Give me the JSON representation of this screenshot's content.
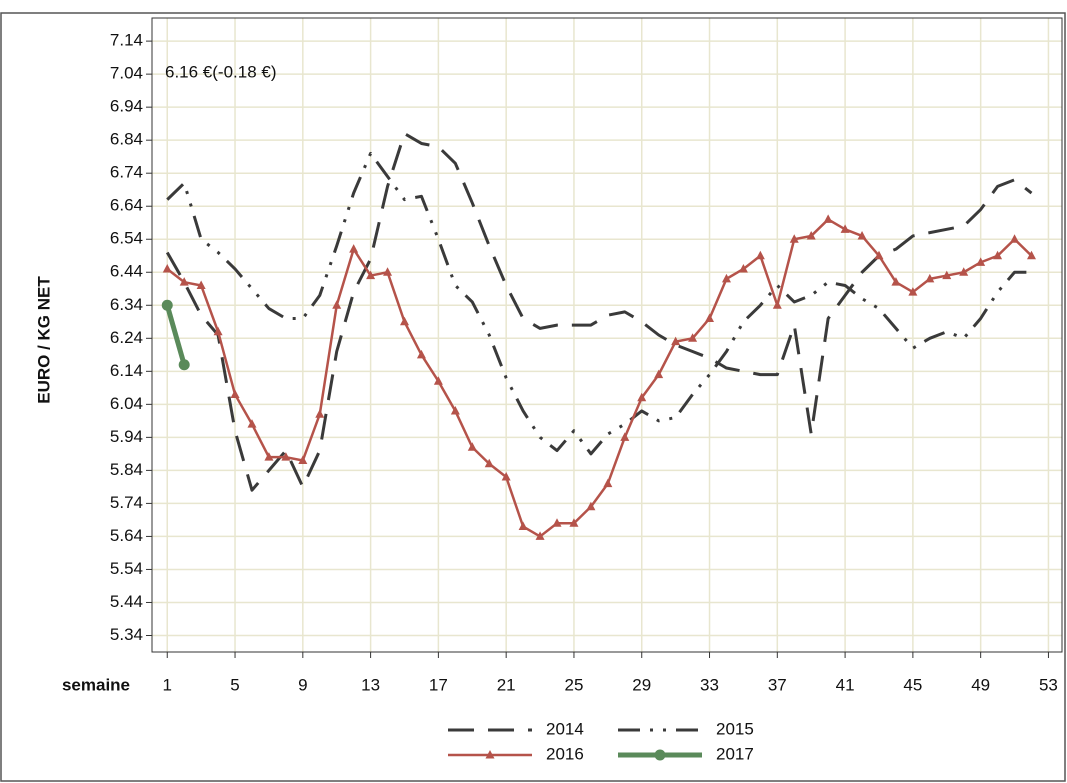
{
  "chart_data": {
    "type": "line",
    "annotation": "6.16 €(-0.18 €)",
    "x_label": "semaine",
    "y_label": "EURO / KG NET",
    "x": [
      1,
      2,
      3,
      4,
      5,
      6,
      7,
      8,
      9,
      10,
      11,
      12,
      13,
      14,
      15,
      16,
      17,
      18,
      19,
      20,
      21,
      22,
      23,
      24,
      25,
      26,
      27,
      28,
      29,
      30,
      31,
      32,
      33,
      34,
      35,
      36,
      37,
      38,
      39,
      40,
      41,
      42,
      43,
      44,
      45,
      46,
      47,
      48,
      49,
      50,
      51,
      52
    ],
    "xlim": [
      0.1,
      53.8
    ],
    "xticks": [
      1,
      5,
      9,
      13,
      17,
      21,
      25,
      29,
      33,
      37,
      41,
      45,
      49,
      53
    ],
    "ylim": [
      5.29,
      7.21
    ],
    "yticks": [
      5.34,
      5.44,
      5.54,
      5.64,
      5.74,
      5.84,
      5.94,
      6.04,
      6.14,
      6.24,
      6.34,
      6.44,
      6.54,
      6.64,
      6.74,
      6.84,
      6.94,
      7.04,
      7.14
    ],
    "grid": true,
    "legend": "bottom",
    "series": [
      {
        "name": "2014",
        "color": "#3a3a3a",
        "style": "dash",
        "marker": "none",
        "values": [
          6.5,
          6.41,
          6.31,
          6.25,
          5.96,
          5.78,
          5.84,
          5.9,
          5.79,
          5.9,
          6.2,
          6.38,
          6.48,
          6.7,
          6.86,
          6.83,
          6.82,
          6.77,
          6.65,
          6.52,
          6.4,
          6.3,
          6.27,
          6.28,
          6.28,
          6.28,
          6.31,
          6.32,
          6.29,
          6.25,
          6.22,
          6.2,
          6.18,
          6.15,
          6.14,
          6.13,
          6.13,
          6.28,
          5.95,
          6.3,
          6.37,
          6.44,
          6.49,
          6.51,
          6.55,
          6.56,
          6.57,
          6.58,
          6.63,
          6.7,
          6.72,
          6.68
        ]
      },
      {
        "name": "2015",
        "color": "#3a3a3a",
        "style": "dashdot",
        "marker": "none",
        "values": [
          6.66,
          6.71,
          6.54,
          6.5,
          6.45,
          6.39,
          6.33,
          6.3,
          6.3,
          6.37,
          6.52,
          6.68,
          6.8,
          6.73,
          6.66,
          6.67,
          6.54,
          6.4,
          6.35,
          6.25,
          6.12,
          6.02,
          5.94,
          5.9,
          5.96,
          5.89,
          5.95,
          5.98,
          6.02,
          5.99,
          6.0,
          6.07,
          6.13,
          6.2,
          6.29,
          6.34,
          6.4,
          6.35,
          6.37,
          6.41,
          6.4,
          6.36,
          6.33,
          6.27,
          6.21,
          6.24,
          6.26,
          6.24,
          6.3,
          6.38,
          6.44,
          6.44
        ]
      },
      {
        "name": "2016",
        "color": "#b5534a",
        "style": "solid",
        "marker": "triangle",
        "values": [
          6.45,
          6.41,
          6.4,
          6.26,
          6.07,
          5.98,
          5.88,
          5.88,
          5.87,
          6.01,
          6.34,
          6.51,
          6.43,
          6.44,
          6.29,
          6.19,
          6.11,
          6.02,
          5.91,
          5.86,
          5.82,
          5.67,
          5.64,
          5.68,
          5.68,
          5.73,
          5.8,
          5.94,
          6.06,
          6.13,
          6.23,
          6.24,
          6.3,
          6.42,
          6.45,
          6.49,
          6.34,
          6.54,
          6.55,
          6.6,
          6.57,
          6.55,
          6.49,
          6.41,
          6.38,
          6.42,
          6.43,
          6.44,
          6.47,
          6.49,
          6.54,
          6.49
        ]
      },
      {
        "name": "2017",
        "color": "#5a8a5a",
        "style": "thick",
        "marker": "circle",
        "values": [
          6.34,
          6.16,
          null,
          null,
          null,
          null,
          null,
          null,
          null,
          null,
          null,
          null,
          null,
          null,
          null,
          null,
          null,
          null,
          null,
          null,
          null,
          null,
          null,
          null,
          null,
          null,
          null,
          null,
          null,
          null,
          null,
          null,
          null,
          null,
          null,
          null,
          null,
          null,
          null,
          null,
          null,
          null,
          null,
          null,
          null,
          null,
          null,
          null,
          null,
          null,
          null,
          null
        ]
      }
    ]
  }
}
